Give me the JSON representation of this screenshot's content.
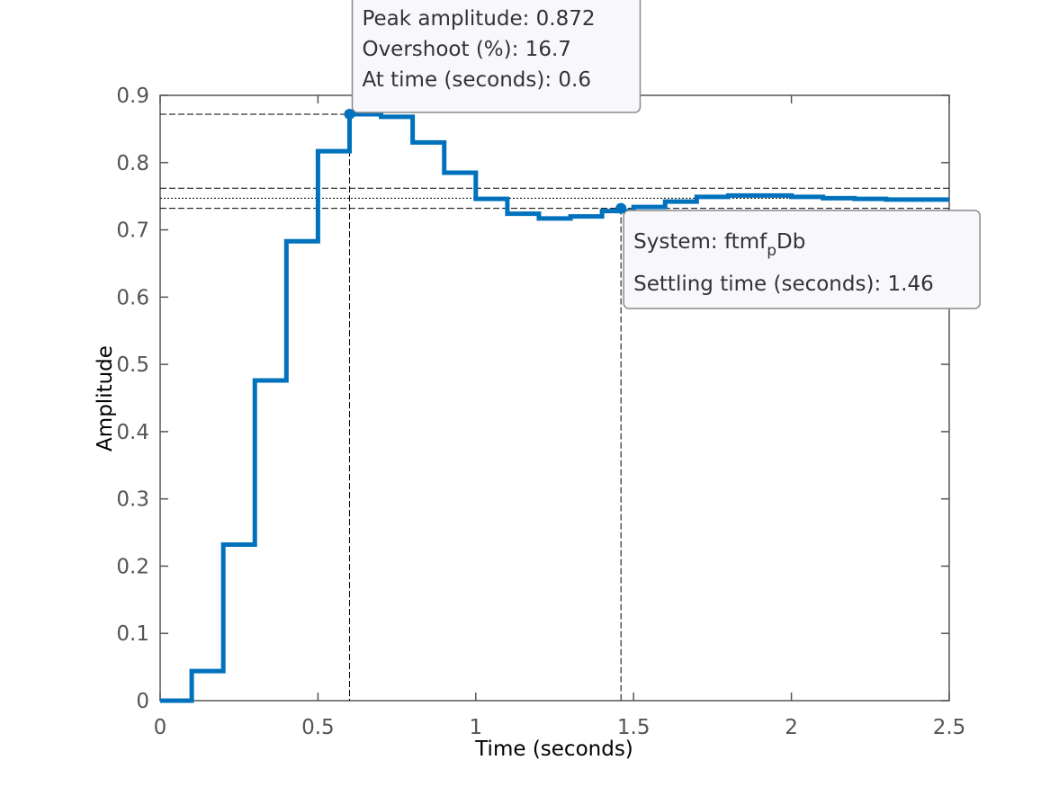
{
  "chart_data": {
    "type": "line",
    "step": true,
    "xlabel": "Time (seconds)",
    "ylabel": "Amplitude",
    "title": "",
    "xlim": [
      0,
      2.5
    ],
    "ylim": [
      0,
      0.9
    ],
    "xticks": [
      "0",
      "0.5",
      "1",
      "1.5",
      "2",
      "2.5"
    ],
    "yticks": [
      "0",
      "0.1",
      "0.2",
      "0.3",
      "0.4",
      "0.5",
      "0.6",
      "0.7",
      "0.8",
      "0.9"
    ],
    "grid": false,
    "series": [
      {
        "color": "#0072BD",
        "x": [
          0,
          0.1,
          0.2,
          0.3,
          0.4,
          0.5,
          0.6,
          0.7,
          0.8,
          0.9,
          1.0,
          1.1,
          1.2,
          1.3,
          1.4,
          1.5,
          1.6,
          1.7,
          1.8,
          1.9,
          2.0,
          2.1,
          2.2,
          2.3,
          2.4,
          2.5
        ],
        "y": [
          0,
          0.044,
          0.232,
          0.476,
          0.683,
          0.817,
          0.872,
          0.868,
          0.83,
          0.785,
          0.746,
          0.724,
          0.717,
          0.72,
          0.728,
          0.734,
          0.742,
          0.749,
          0.751,
          0.751,
          0.749,
          0.747,
          0.746,
          0.745,
          0.745,
          0.745
        ]
      }
    ],
    "reference_lines": {
      "steady_state": 0.747,
      "settling_band_upper": 0.762,
      "settling_band_lower": 0.732
    },
    "annotations": [
      {
        "kind": "peak",
        "x": 0.6,
        "y": 0.872,
        "lines": [
          "Peak amplitude: 0.872",
          "Overshoot (%): 16.7",
          "At time (seconds): 0.6"
        ]
      },
      {
        "kind": "settling",
        "x": 1.46,
        "y": 0.732,
        "system_prefix": "System: ftmf",
        "system_sub": "p",
        "system_suffix": "Db",
        "settling_line": "Settling time (seconds): 1.46"
      }
    ],
    "colors": {
      "axis": "#555555",
      "line": "#0072BD",
      "tip_bg": "#f8f8fc",
      "tip_border": "#8a8a8a"
    }
  }
}
